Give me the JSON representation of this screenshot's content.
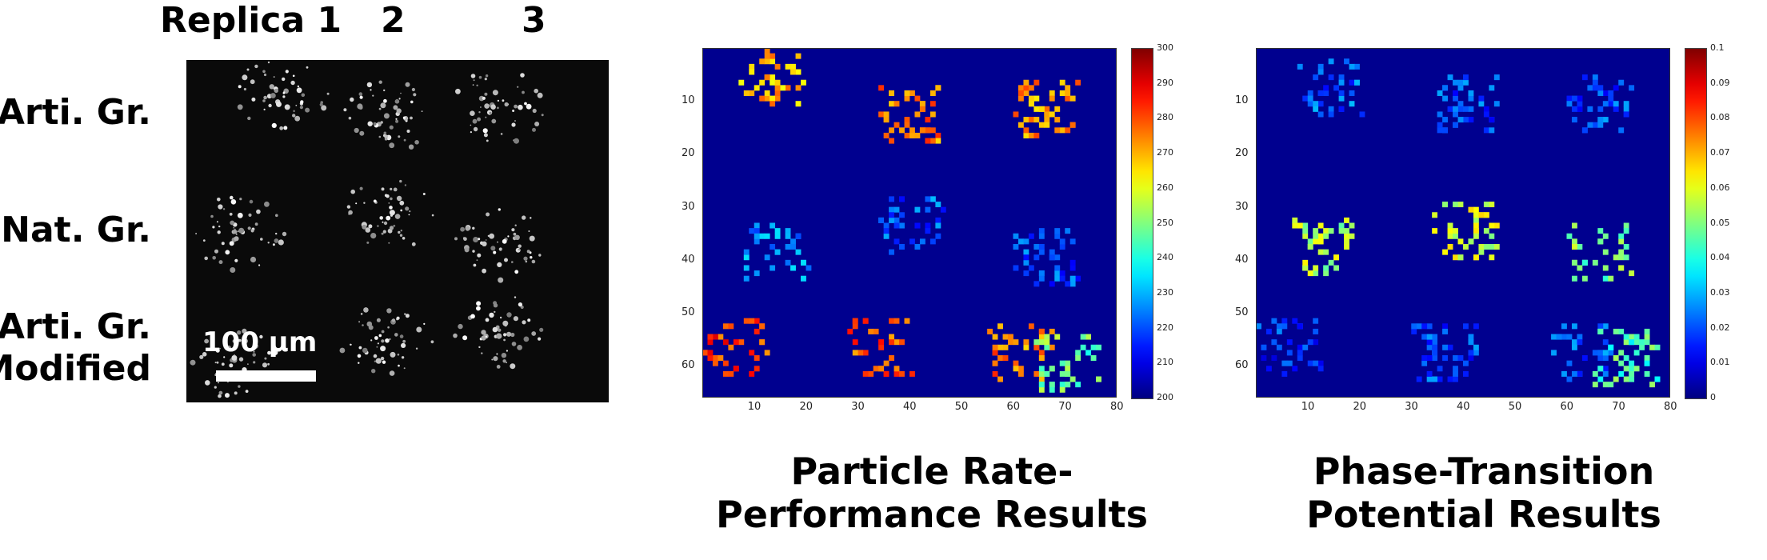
{
  "figure": {
    "column_labels": [
      "Replica 1",
      "2",
      "3"
    ],
    "row_labels": [
      "Arti. Gr.",
      "Nat. Gr.",
      "Arti. Gr.\nModified"
    ],
    "scale_bar_label": "100 μm",
    "panel_titles": {
      "rate": [
        "Particle Rate-",
        "Performance Results"
      ],
      "phase": [
        "Phase-Transition",
        "Potential Results"
      ]
    }
  },
  "chart_data": [
    {
      "type": "heatmap",
      "title": "",
      "xlabel": "",
      "ylabel": "",
      "x_ticks": [
        10,
        20,
        30,
        40,
        50,
        60,
        70,
        80
      ],
      "y_ticks": [
        10,
        20,
        30,
        40,
        50,
        60
      ],
      "xlim": [
        0,
        80
      ],
      "ylim": [
        66,
        0
      ],
      "colorbar": {
        "min": 200,
        "max": 300,
        "ticks": [
          200,
          210,
          220,
          230,
          240,
          250,
          260,
          270,
          280,
          290,
          300
        ],
        "colormap": "jet"
      },
      "background_value": 200,
      "clusters": [
        {
          "x": 13,
          "y": 5,
          "value": 270
        },
        {
          "x": 40,
          "y": 12,
          "value": 275
        },
        {
          "x": 66,
          "y": 11,
          "value": 272
        },
        {
          "x": 14,
          "y": 38,
          "value": 226
        },
        {
          "x": 40,
          "y": 33,
          "value": 222
        },
        {
          "x": 66,
          "y": 39,
          "value": 221
        },
        {
          "x": 6,
          "y": 56,
          "value": 282
        },
        {
          "x": 34,
          "y": 56,
          "value": 280
        },
        {
          "x": 61,
          "y": 57,
          "value": 275
        },
        {
          "x": 70,
          "y": 59,
          "value": 248
        }
      ]
    },
    {
      "type": "heatmap",
      "title": "",
      "xlabel": "",
      "ylabel": "",
      "x_ticks": [
        10,
        20,
        30,
        40,
        50,
        60,
        70,
        80
      ],
      "y_ticks": [
        10,
        20,
        30,
        40,
        50,
        60
      ],
      "xlim": [
        0,
        80
      ],
      "ylim": [
        66,
        0
      ],
      "colorbar": {
        "min": 0,
        "max": 0.1,
        "ticks": [
          0,
          0.01,
          0.02,
          0.03,
          0.04,
          0.05,
          0.06,
          0.07,
          0.08,
          0.09,
          0.1
        ],
        "colormap": "jet"
      },
      "background_value": 0,
      "clusters": [
        {
          "x": 14,
          "y": 7,
          "value": 0.022
        },
        {
          "x": 40,
          "y": 10,
          "value": 0.02
        },
        {
          "x": 66,
          "y": 10,
          "value": 0.02
        },
        {
          "x": 13,
          "y": 37,
          "value": 0.055
        },
        {
          "x": 40,
          "y": 34,
          "value": 0.058
        },
        {
          "x": 66,
          "y": 38,
          "value": 0.05
        },
        {
          "x": 6,
          "y": 56,
          "value": 0.018
        },
        {
          "x": 36,
          "y": 57,
          "value": 0.02
        },
        {
          "x": 62,
          "y": 57,
          "value": 0.022
        },
        {
          "x": 71,
          "y": 58,
          "value": 0.045
        }
      ]
    }
  ]
}
